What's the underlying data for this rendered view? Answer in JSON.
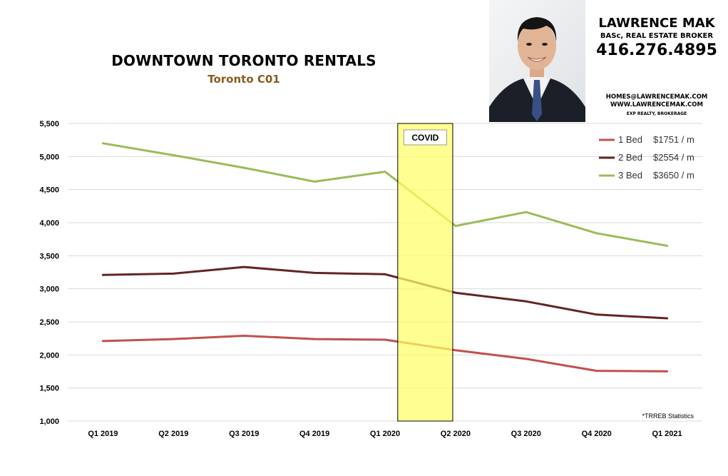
{
  "header": {
    "title": "DOWNTOWN TORONTO RENTALS",
    "subtitle": "Toronto C01"
  },
  "agent": {
    "name": "LAWRENCE MAK",
    "title": "BASc, REAL ESTATE BROKER",
    "phone": "416.276.4895",
    "email": "HOMES@LAWRENCEMAK.COM",
    "website": "WWW.LAWRENCEMAK.COM",
    "brokerage": "EXP REALTY, BROKERAGE"
  },
  "source_note": "*TRREB Statistics",
  "chart_data": {
    "type": "line",
    "title": "DOWNTOWN TORONTO RENTALS",
    "subtitle": "Toronto C01",
    "categories": [
      "Q1 2019",
      "Q2 2019",
      "Q3 2019",
      "Q4 2019",
      "Q1 2020",
      "Q2 2020",
      "Q3 2020",
      "Q4 2020",
      "Q1 2021"
    ],
    "ylim": [
      1000,
      5500
    ],
    "yticks": [
      1000,
      1500,
      2000,
      2500,
      3000,
      3500,
      4000,
      4500,
      5000,
      5500
    ],
    "ytick_labels": [
      "1,000",
      "1,500",
      "2,000",
      "2,500",
      "3,000",
      "3,500",
      "4,000",
      "4,500",
      "5,000",
      "5,500"
    ],
    "grid": true,
    "legend_position": "top-right",
    "series": [
      {
        "name": "1 Bed",
        "legend_value": "$1751 / m",
        "color": "#c0504d",
        "values": [
          2210,
          2240,
          2290,
          2240,
          2230,
          2070,
          1940,
          1760,
          1751
        ]
      },
      {
        "name": "2 Bed",
        "legend_value": "$2554 / m",
        "color": "#632523",
        "values": [
          3210,
          3230,
          3330,
          3240,
          3220,
          2940,
          2810,
          2610,
          2554
        ]
      },
      {
        "name": "3 Bed",
        "legend_value": "$3650 / m",
        "color": "#9bbb59",
        "values": [
          5200,
          5020,
          4830,
          4620,
          4770,
          3950,
          4160,
          3840,
          3650
        ]
      }
    ],
    "annotations": [
      {
        "label": "COVID",
        "from_category": "Q1 2020",
        "to_category": "Q2 2020",
        "color": "#ffff66"
      }
    ]
  }
}
